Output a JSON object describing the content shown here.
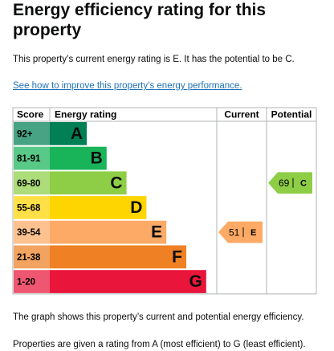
{
  "header": {
    "title": "Energy efficiency rating for this property"
  },
  "intro": "This property’s current energy rating is E. It has the potential to be C.",
  "link": "See how to improve this property’s energy performance.",
  "table": {
    "headers": [
      "Score",
      "Energy rating",
      "Current",
      "Potential"
    ],
    "bands": [
      {
        "range": "92+",
        "letter": "A",
        "color": "#008054"
      },
      {
        "range": "81-91",
        "letter": "B",
        "color": "#19b459"
      },
      {
        "range": "69-80",
        "letter": "C",
        "color": "#8dce46"
      },
      {
        "range": "55-68",
        "letter": "D",
        "color": "#ffd500"
      },
      {
        "range": "39-54",
        "letter": "E",
        "color": "#fcaa65"
      },
      {
        "range": "21-38",
        "letter": "F",
        "color": "#ef8023"
      },
      {
        "range": "1-20",
        "letter": "G",
        "color": "#e9153b"
      }
    ],
    "current": {
      "score": 51,
      "letter": "E"
    },
    "potential": {
      "score": 69,
      "letter": "C"
    }
  },
  "notes": [
    "The graph shows this property’s current and potential energy efficiency.",
    "Properties are given a rating from A (most efficient) to G (least efficient)."
  ]
}
